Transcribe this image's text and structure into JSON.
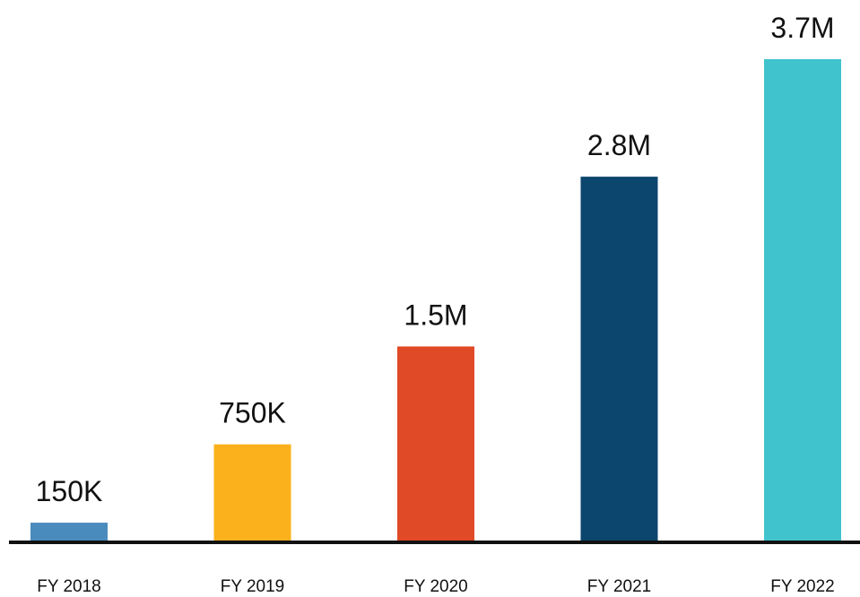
{
  "chart_data": {
    "type": "bar",
    "categories": [
      "FY 2018",
      "FY 2019",
      "FY 2020",
      "FY 2021",
      "FY 2022"
    ],
    "values": [
      150000,
      750000,
      1500000,
      2800000,
      3700000
    ],
    "data_labels": [
      "150K",
      "750K",
      "1.5M",
      "2.8M",
      "3.7M"
    ],
    "colors": [
      "#4a8bbd",
      "#fbb11c",
      "#e04a26",
      "#0c466e",
      "#40c3cc"
    ],
    "title": "",
    "xlabel": "",
    "ylabel": "",
    "ylim": [
      0,
      3700000
    ],
    "grid": false,
    "legend": "none"
  }
}
